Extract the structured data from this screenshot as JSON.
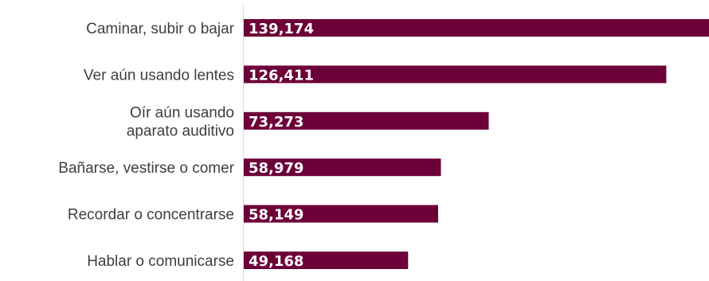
{
  "chart_data": {
    "type": "bar",
    "orientation": "horizontal",
    "title": "",
    "xlabel": "",
    "ylabel": "",
    "categories": [
      [
        "Caminar, subir o bajar"
      ],
      [
        "Ver aún usando lentes"
      ],
      [
        "Oír aún usando",
        "aparato auditivo"
      ],
      [
        "Bañarse, vestirse o comer"
      ],
      [
        "Recordar o concentrarse"
      ],
      [
        "Hablar o comunicarse"
      ]
    ],
    "values": [
      139174,
      126411,
      73273,
      58979,
      58149,
      49168
    ],
    "data_labels": [
      "139,174",
      "126,411",
      "73,273",
      "58,979",
      "58,149",
      "49,168"
    ],
    "xlim": [
      0,
      139174
    ],
    "grid": false,
    "legend": "none",
    "colors": {
      "bar": "#6d0039",
      "data_label": "#ffffff",
      "category_label": "#3f3f3f",
      "axis": "#d9d9d9"
    }
  }
}
